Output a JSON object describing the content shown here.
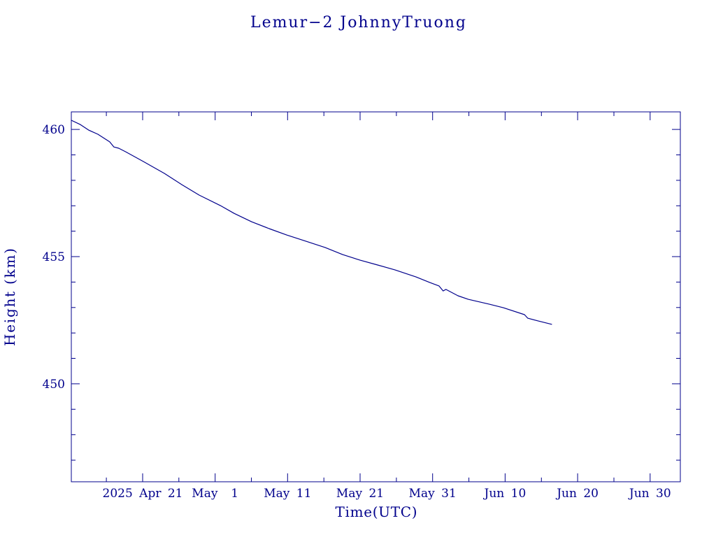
{
  "chart_data": {
    "type": "line",
    "title": "Lemur−2 JohnnyTruong",
    "xlabel": "Time(UTC)",
    "ylabel": "Height (km)",
    "xlim": [
      "2025-04-11T04:00",
      "2025-07-04T04:00"
    ],
    "ylim": [
      446.15,
      460.69
    ],
    "x_ticks": [
      "2025-04-21",
      "2025-05-01",
      "2025-05-11",
      "2025-05-21",
      "2025-05-31",
      "2025-06-10",
      "2025-06-20",
      "2025-06-30"
    ],
    "x_tick_labels": [
      "2025 Apr 21",
      "May  1",
      "May 11",
      "May 21",
      "May 31",
      "Jun 10",
      "Jun 20",
      "Jun 30"
    ],
    "x_minor_ticks": [
      "2025-04-16",
      "2025-04-26",
      "2025-05-06",
      "2025-05-16",
      "2025-05-26",
      "2025-06-05",
      "2025-06-15",
      "2025-06-25"
    ],
    "y_ticks": [
      450,
      455,
      460
    ],
    "y_tick_labels": [
      "450",
      "455",
      "460"
    ],
    "y_minor_ticks": [
      447,
      448,
      449,
      451,
      452,
      453,
      454,
      456,
      457,
      458,
      459
    ],
    "grid": false,
    "colors": {
      "axis": "#00008c",
      "line": "#00008c",
      "background": "#ffffff"
    },
    "x": [
      "2025-04-11T04:00",
      "2025-04-12T10:00",
      "2025-04-13T14:00",
      "2025-04-14T20:00",
      "2025-04-16T11:00",
      "2025-04-17T01:00",
      "2025-04-17T17:00",
      "2025-04-18T16:00",
      "2025-04-21T02:00",
      "2025-04-24T00:00",
      "2025-04-26T10:00",
      "2025-04-28T19:00",
      "2025-05-01T17:00",
      "2025-05-03T15:00",
      "2025-05-06T01:00",
      "2025-05-08T11:00",
      "2025-05-10T21:00",
      "2025-05-13T06:00",
      "2025-05-16T04:00",
      "2025-05-18T14:00",
      "2025-05-21T00:00",
      "2025-05-23T10:00",
      "2025-05-25T19:00",
      "2025-05-28T17:00",
      "2025-05-30T15:00",
      "2025-05-31T21:00",
      "2025-06-01T11:00",
      "2025-06-01T20:00",
      "2025-06-03T12:00",
      "2025-06-04T22:00",
      "2025-06-07T20:00",
      "2025-06-09T18:00",
      "2025-06-12T16:00",
      "2025-06-13T03:00",
      "2025-06-14T14:00",
      "2025-06-16T10:00"
    ],
    "series": [
      {
        "values": [
          460.36,
          460.19,
          459.97,
          459.81,
          459.51,
          459.31,
          459.26,
          459.12,
          458.74,
          458.27,
          457.83,
          457.42,
          457.01,
          456.7,
          456.37,
          456.1,
          455.85,
          455.63,
          455.36,
          455.08,
          454.86,
          454.67,
          454.48,
          454.2,
          453.98,
          453.85,
          453.65,
          453.71,
          453.46,
          453.32,
          453.13,
          452.99,
          452.72,
          452.58,
          452.47,
          452.34
        ]
      }
    ]
  }
}
